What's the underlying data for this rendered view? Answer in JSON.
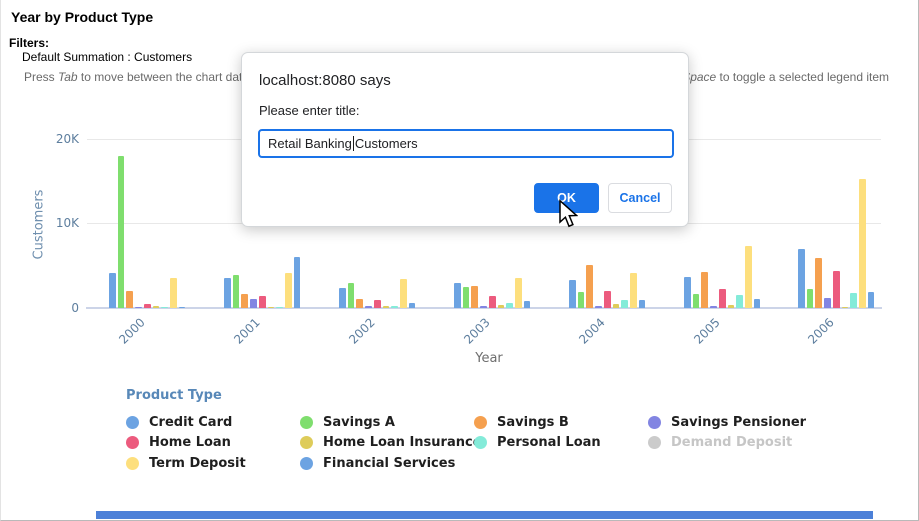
{
  "page": {
    "title": "Year by Product Type",
    "filters_label": "Filters:",
    "filter_value": "Default Summation : Customers",
    "hint_left": {
      "pre": "Press ",
      "em": "Tab",
      "post": " to move between the chart data, le"
    },
    "hint_right": {
      "pre": "r or ",
      "em": "Space",
      "post": " to toggle a selected legend item"
    }
  },
  "dialog": {
    "source": "localhost:8080 says",
    "message": "Please enter title:",
    "input_value": "Retail Banking Customers",
    "input_caret_before": "Retail Banking ",
    "input_caret_after": "Customers",
    "ok_label": "OK",
    "cancel_label": "Cancel",
    "accent_color": "#1a73e8"
  },
  "chart_data": {
    "type": "bar",
    "title": "Year by Product Type",
    "xlabel": "Year",
    "ylabel": "Customers",
    "categories": [
      "2000",
      "2001",
      "2002",
      "2003",
      "2004",
      "2005",
      "2006"
    ],
    "yticks": [
      "0",
      "10K",
      "20K"
    ],
    "ylim": [
      0,
      20000
    ],
    "grid": true,
    "legend_title": "Product Type",
    "legend_position": "bottom",
    "series": [
      {
        "name": "Credit Card",
        "color": "#6CA3E2",
        "values": [
          4200,
          3500,
          2400,
          3000,
          3300,
          3700,
          7000
        ]
      },
      {
        "name": "Savings A",
        "color": "#7FDE6E",
        "values": [
          18000,
          3900,
          3000,
          2450,
          1900,
          1700,
          2200
        ]
      },
      {
        "name": "Savings B",
        "color": "#F5A04F",
        "values": [
          2000,
          1700,
          1100,
          2600,
          5100,
          4300,
          5900
        ]
      },
      {
        "name": "Savings Pensioner",
        "color": "#8285E2",
        "values": [
          100,
          1100,
          250,
          200,
          250,
          300,
          1150
        ]
      },
      {
        "name": "Home Loan",
        "color": "#EC5B7E",
        "values": [
          450,
          1400,
          950,
          1400,
          2000,
          2300,
          4400
        ]
      },
      {
        "name": "Home Loan Insurance",
        "color": "#DECC5A",
        "values": [
          300,
          150,
          200,
          350,
          500,
          400,
          100
        ]
      },
      {
        "name": "Personal Loan",
        "color": "#84EBD9",
        "values": [
          100,
          150,
          200,
          650,
          1000,
          1500,
          1750
        ]
      },
      {
        "name": "Demand Deposit",
        "color": "#CBCBCB",
        "disabled": true,
        "values": [
          0,
          0,
          0,
          0,
          0,
          0,
          0
        ]
      },
      {
        "name": "Term Deposit",
        "color": "#FDDF7D",
        "values": [
          3600,
          4100,
          3400,
          3600,
          4200,
          7400,
          15300
        ]
      },
      {
        "name": "Financial Services",
        "color": "#6CA3E2",
        "values": [
          100,
          6000,
          600,
          800,
          1000,
          1100,
          1900
        ]
      }
    ]
  }
}
